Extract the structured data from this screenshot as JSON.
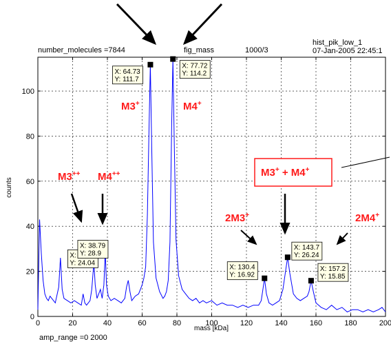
{
  "header": {
    "number_molecules": "number_molecules =7844",
    "fig_name": "fig_mass",
    "ratio": "1000/3",
    "hist_name": "hist_pik_low_1",
    "timestamp": "07-Jan-2005 22:45:1"
  },
  "footer": {
    "amp_range": "amp_range =0  2000"
  },
  "chart_data": {
    "type": "line",
    "title": "",
    "xlabel": "mass [kDa]",
    "ylabel": "counts",
    "xlim": [
      0,
      200
    ],
    "ylim": [
      0,
      115
    ],
    "grid": true,
    "line_color": "#0000ff",
    "xticks": [
      0,
      20,
      40,
      60,
      80,
      100,
      120,
      140,
      160,
      180,
      200
    ],
    "yticks": [
      0,
      20,
      40,
      60,
      80,
      100
    ],
    "series": [
      {
        "x": [
          0,
          1,
          2,
          3,
          4,
          5,
          6,
          7,
          8,
          10,
          12,
          13,
          14,
          15,
          17,
          19,
          21,
          23,
          25,
          26,
          27,
          28,
          30,
          31,
          32.23,
          33,
          34,
          35,
          36,
          37,
          38,
          38.79,
          39.5,
          40.5,
          42,
          44,
          46,
          48,
          50,
          51,
          52,
          53,
          54,
          56,
          58,
          60,
          61,
          62,
          63,
          64,
          64.73,
          65.5,
          66.5,
          68,
          70,
          72,
          73,
          74,
          75,
          76,
          77,
          77.72,
          78.5,
          79.5,
          81,
          83,
          85,
          87,
          89,
          91,
          93,
          95,
          97,
          100,
          103,
          106,
          109,
          112,
          115,
          118,
          121,
          124,
          127,
          128.5,
          130.4,
          131.5,
          133,
          135,
          137,
          139,
          141,
          142.5,
          143.7,
          145,
          147,
          149,
          151,
          153,
          155,
          156,
          157.2,
          158.5,
          160,
          163,
          166,
          169,
          172,
          175,
          178,
          181,
          184,
          187,
          190,
          193,
          196,
          198,
          200
        ],
        "y": [
          3,
          43,
          28,
          16,
          10,
          8,
          7,
          9,
          8,
          6,
          13,
          26,
          12,
          8,
          7,
          6,
          7,
          6,
          5,
          10,
          6,
          5,
          7,
          12,
          24.04,
          14,
          8,
          10,
          12,
          8,
          14,
          28.9,
          14,
          9,
          7,
          8,
          7,
          6,
          8,
          13,
          16,
          11,
          7,
          9,
          10,
          14,
          17,
          22,
          45,
          85,
          111.7,
          75,
          33,
          17,
          11,
          8,
          9,
          11,
          16,
          33,
          85,
          114.2,
          76,
          34,
          18,
          12,
          10,
          8,
          7,
          8,
          6,
          7,
          6,
          7,
          5,
          6,
          5,
          5,
          4,
          5,
          4,
          5,
          5,
          7,
          16.92,
          10,
          6,
          5,
          6,
          7,
          12,
          20,
          26.24,
          19,
          10,
          8,
          7,
          8,
          9,
          11,
          15.85,
          11,
          6,
          4,
          3,
          5,
          3,
          4,
          2,
          3,
          3,
          2,
          3,
          2,
          3,
          4,
          2
        ]
      }
    ],
    "datatips": [
      {
        "x": 64.73,
        "y": 111.7,
        "x_text": "X: 64.73",
        "y_text": "Y: 111.7"
      },
      {
        "x": 77.72,
        "y": 114.2,
        "x_text": "X: 77.72",
        "y_text": "Y: 114.2"
      },
      {
        "x": 32.23,
        "y": 24.04,
        "x_text": "X: 32.23",
        "y_text": "Y: 24.04"
      },
      {
        "x": 38.79,
        "y": 28.9,
        "x_text": "X: 38.79",
        "y_text": "Y: 28.9"
      },
      {
        "x": 130.4,
        "y": 16.92,
        "x_text": "X: 130.4",
        "y_text": "Y: 16.92"
      },
      {
        "x": 143.7,
        "y": 26.24,
        "x_text": "X: 143.7",
        "y_text": "Y: 26.24"
      },
      {
        "x": 157.2,
        "y": 15.85,
        "x_text": "X: 157.2",
        "y_text": "Y: 15.85"
      }
    ],
    "annotations": [
      {
        "base": "M3",
        "sup": "+",
        "tail": "",
        "sup2": ""
      },
      {
        "base": "M4",
        "sup": "+",
        "tail": "",
        "sup2": ""
      },
      {
        "base": "M3",
        "sup": "++",
        "tail": "",
        "sup2": ""
      },
      {
        "base": "M4",
        "sup": "++",
        "tail": "",
        "sup2": ""
      },
      {
        "base": "2M3",
        "sup": "+",
        "tail": "",
        "sup2": ""
      },
      {
        "base": "2M4",
        "sup": "+",
        "tail": "",
        "sup2": ""
      },
      {
        "base": "M3",
        "sup": "+",
        "tail": " + M4",
        "sup2": "+"
      }
    ],
    "annotation_color": "#ff1a1a"
  }
}
